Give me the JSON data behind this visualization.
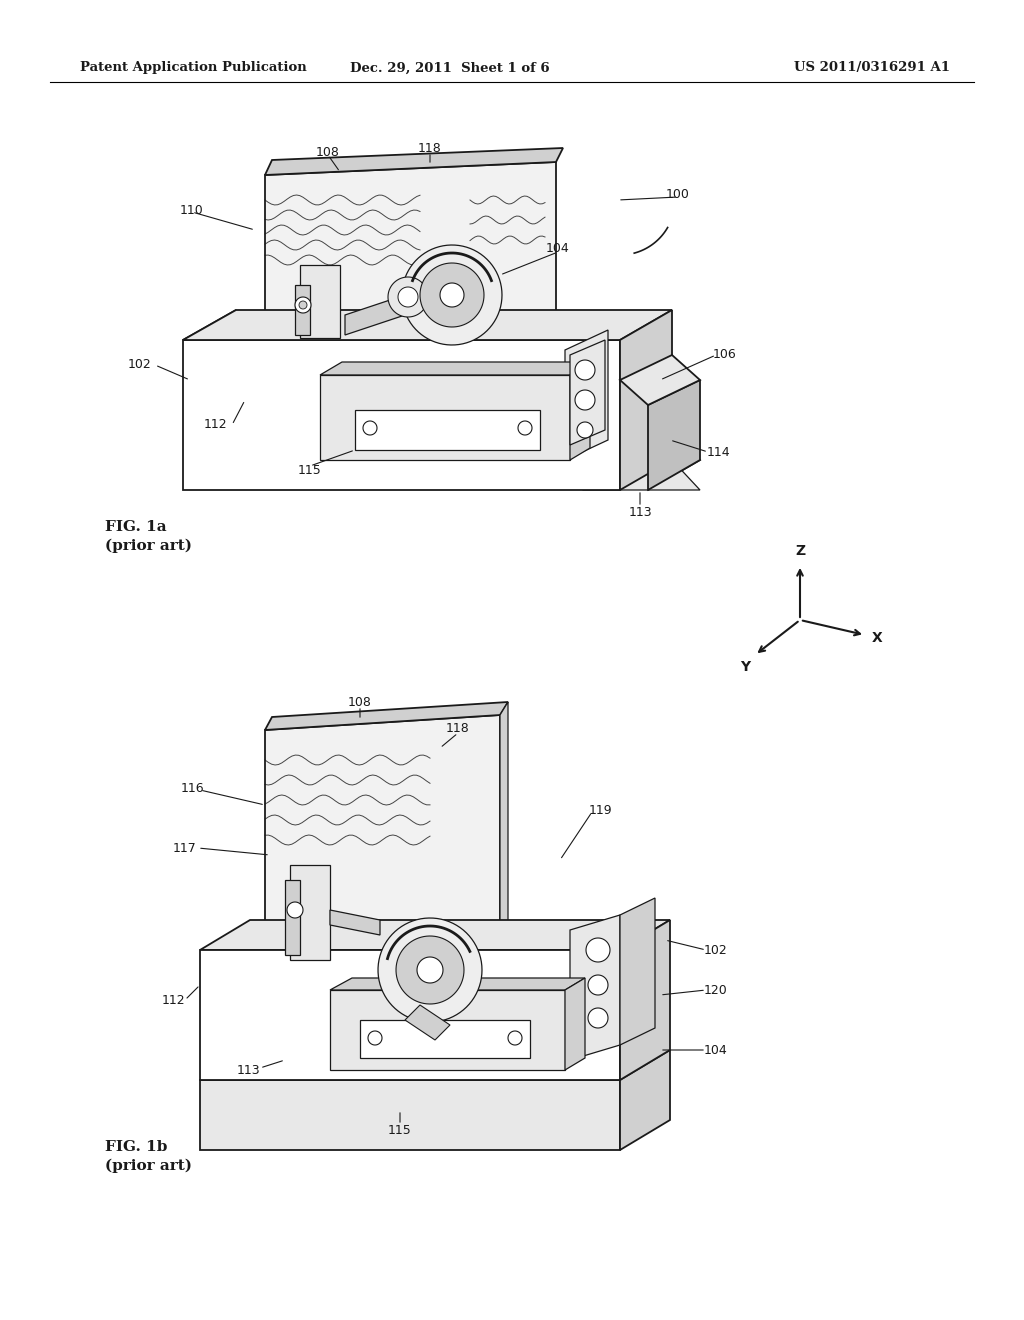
{
  "background_color": "#ffffff",
  "header_left": "Patent Application Publication",
  "header_center": "Dec. 29, 2011  Sheet 1 of 6",
  "header_right": "US 2011/0316291 A1",
  "header_fontsize": 9.5,
  "fig1a_label": "FIG. 1a\n(prior art)",
  "fig1b_label": "FIG. 1b\n(prior art)",
  "text_color": "#1a1a1a"
}
